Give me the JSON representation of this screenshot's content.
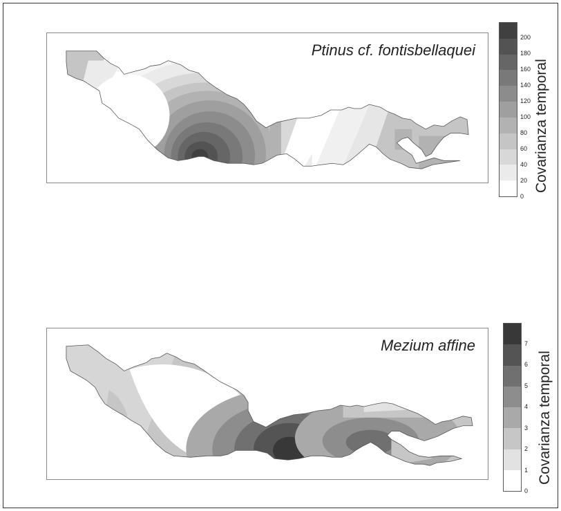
{
  "chart_data": [
    {
      "type": "heatmap",
      "title": "Ptinus cf. fontisbellaquei",
      "colorbar_label": "Covarianza temporal",
      "ticks": [
        0,
        20,
        40,
        60,
        80,
        100,
        120,
        140,
        160,
        180,
        200
      ],
      "levels": [
        0,
        20,
        40,
        60,
        80,
        100,
        120,
        140,
        160,
        180,
        200,
        220
      ],
      "colors": [
        "#ffffff",
        "#ebebeb",
        "#d8d8d8",
        "#c5c5c5",
        "#b2b2b2",
        "#9f9f9f",
        "#8c8c8c",
        "#797979",
        "#666666",
        "#535353",
        "#404040"
      ]
    },
    {
      "type": "heatmap",
      "title": "Mezium affine",
      "colorbar_label": "Covarianza temporal",
      "ticks": [
        0,
        1,
        2,
        3,
        4,
        5,
        6,
        7
      ],
      "levels": [
        0,
        1,
        2,
        3,
        4,
        5,
        6,
        7,
        8
      ],
      "colors": [
        "#ffffff",
        "#e2e2e2",
        "#c6c6c6",
        "#a9a9a9",
        "#8d8d8d",
        "#707070",
        "#545454",
        "#383838"
      ]
    }
  ]
}
